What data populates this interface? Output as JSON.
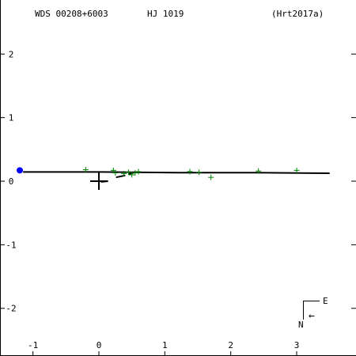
{
  "header": {
    "left": "WDS 00208+6003",
    "center": "HJ 1019",
    "right": "(Hrt2017a)"
  },
  "compass": {
    "east": "E",
    "north": "N",
    "arrow": "←"
  },
  "chart_data": {
    "type": "scatter",
    "title": "",
    "xlabel": "",
    "ylabel": "",
    "xlim": [
      -1.5,
      3.9
    ],
    "ylim": [
      -2.75,
      2.85
    ],
    "xticks": [
      -1,
      0,
      1,
      2,
      3
    ],
    "yticks": [
      -2,
      -1,
      0,
      1,
      2
    ],
    "grid": false,
    "primary_star": {
      "x": 0.0,
      "y": 0.0,
      "marker": "plus",
      "color": "#000000"
    },
    "last_measure": {
      "x": -1.2,
      "y": 0.17,
      "marker": "dot",
      "color": "#0000ff"
    },
    "orbit_line": {
      "color": "#000000",
      "x": [
        -1.15,
        0.0,
        1.2,
        2.4,
        3.5
      ],
      "y": [
        0.145,
        0.145,
        0.135,
        0.135,
        0.125
      ]
    },
    "observations": {
      "marker": "plus",
      "color": "#008000",
      "x": [
        -0.2,
        0.22,
        0.25,
        0.38,
        0.45,
        0.5,
        0.55,
        0.6,
        1.38,
        1.52,
        1.7,
        2.42,
        3.0
      ],
      "y": [
        0.18,
        0.17,
        0.13,
        0.12,
        0.14,
        0.1,
        0.13,
        0.15,
        0.15,
        0.14,
        0.06,
        0.16,
        0.17
      ]
    },
    "residual_segments": {
      "color": "#000000",
      "segments": [
        {
          "x": [
            0.03,
            0.14
          ],
          "y": [
            -0.01,
            0.0
          ]
        },
        {
          "x": [
            0.26,
            0.4
          ],
          "y": [
            0.06,
            0.09
          ]
        },
        {
          "x": [
            0.45,
            0.55
          ],
          "y": [
            0.11,
            0.14
          ]
        }
      ]
    }
  }
}
